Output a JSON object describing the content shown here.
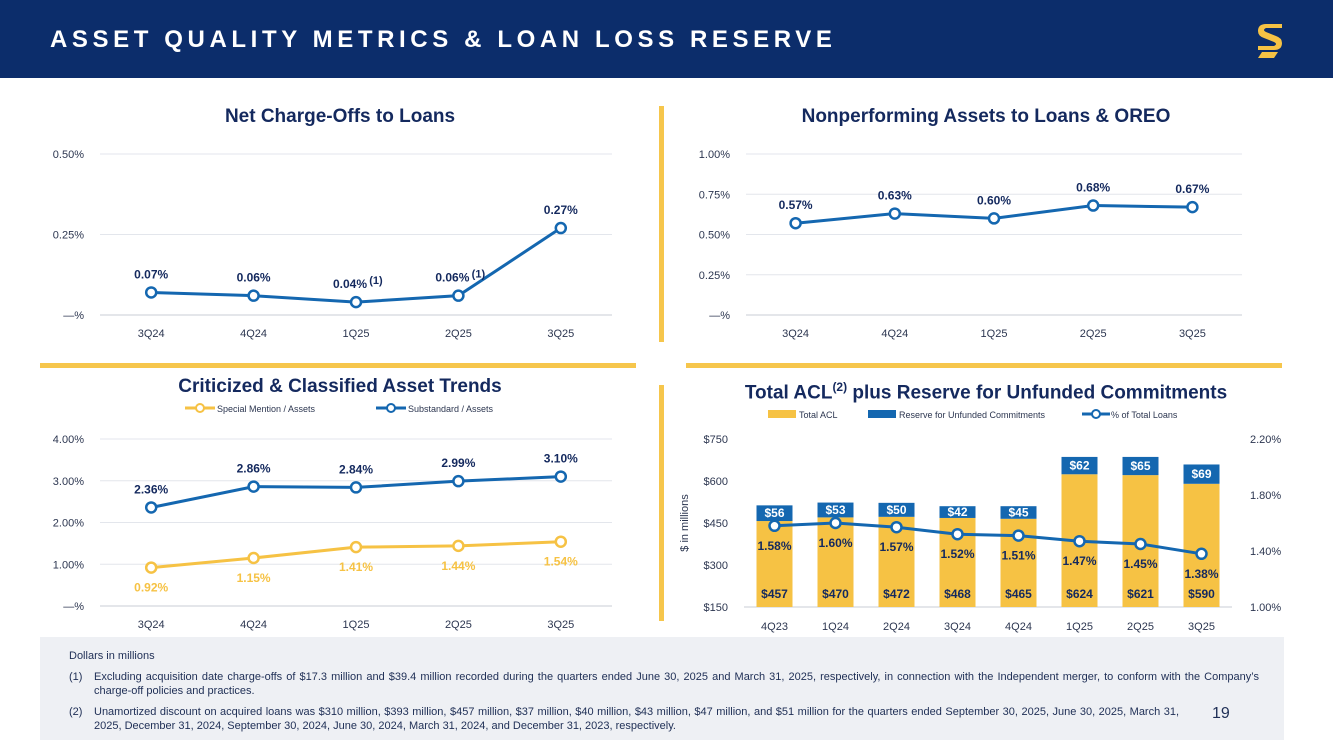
{
  "title": "ASSET QUALITY METRICS & LOAN LOSS RESERVE",
  "colors": {
    "navy": "#0c2d6b",
    "blue": "#1467b0",
    "gold": "#f6c244",
    "dark_label": "#14295e"
  },
  "chart_data": [
    {
      "id": "nco",
      "type": "line",
      "title": "Net Charge-Offs to Loans",
      "categories": [
        "3Q24",
        "4Q24",
        "1Q25",
        "2Q25",
        "3Q25"
      ],
      "y_ticks": [
        "0.50%",
        "0.25%",
        "—%"
      ],
      "ylim": [
        0,
        0.5
      ],
      "series": [
        {
          "values": [
            0.07,
            0.06,
            0.04,
            0.06,
            0.27
          ],
          "labels": [
            "0.07%",
            "0.06%",
            "0.04%",
            "0.06%",
            "0.27%"
          ],
          "footnotes": [
            "",
            "",
            "(1)",
            "(1)",
            ""
          ]
        }
      ],
      "grid": true
    },
    {
      "id": "npa",
      "type": "line",
      "title": "Nonperforming Assets to Loans & OREO",
      "categories": [
        "3Q24",
        "4Q24",
        "1Q25",
        "2Q25",
        "3Q25"
      ],
      "y_ticks": [
        "1.00%",
        "0.75%",
        "0.50%",
        "0.25%",
        "—%"
      ],
      "ylim": [
        0,
        1.0
      ],
      "series": [
        {
          "values": [
            0.57,
            0.63,
            0.6,
            0.68,
            0.67
          ],
          "labels": [
            "0.57%",
            "0.63%",
            "0.60%",
            "0.68%",
            "0.67%"
          ]
        }
      ],
      "grid": true
    },
    {
      "id": "crit",
      "type": "line",
      "title": "Criticized & Classified Asset Trends",
      "categories": [
        "3Q24",
        "4Q24",
        "1Q25",
        "2Q25",
        "3Q25"
      ],
      "y_ticks": [
        "4.00%",
        "3.00%",
        "2.00%",
        "1.00%",
        "—%"
      ],
      "ylim": [
        0,
        4.0
      ],
      "legend_position": "top-center",
      "series": [
        {
          "name": "Special Mention / Assets",
          "values": [
            0.92,
            1.15,
            1.41,
            1.44,
            1.54
          ],
          "labels": [
            "0.92%",
            "1.15%",
            "1.41%",
            "1.44%",
            "1.54%"
          ]
        },
        {
          "name": "Substandard / Assets",
          "values": [
            2.36,
            2.86,
            2.84,
            2.99,
            3.1
          ],
          "labels": [
            "2.36%",
            "2.86%",
            "2.84%",
            "2.99%",
            "3.10%"
          ]
        }
      ],
      "grid": true
    },
    {
      "id": "acl",
      "type": "bar",
      "title": "Total ACL",
      "title_sup": "(2)",
      "title_suffix": " plus Reserve for Unfunded Commitments",
      "ylabel": "$ in millions",
      "categories": [
        "4Q23",
        "1Q24",
        "2Q24",
        "3Q24",
        "4Q24",
        "1Q25",
        "2Q25",
        "3Q25"
      ],
      "y_ticks": [
        "$750",
        "$600",
        "$450",
        "$300",
        "$150"
      ],
      "ylim": [
        150,
        750
      ],
      "y2_ticks": [
        "2.20%",
        "1.80%",
        "1.40%",
        "1.00%"
      ],
      "y2lim": [
        1.0,
        2.2
      ],
      "legend_position": "top-center",
      "series": [
        {
          "name": "Total ACL",
          "values": [
            457,
            470,
            472,
            468,
            465,
            624,
            621,
            590
          ],
          "labels": [
            "$457",
            "$470",
            "$472",
            "$468",
            "$465",
            "$624",
            "$621",
            "$590"
          ]
        },
        {
          "name": "Reserve for Unfunded Commitments",
          "values": [
            56,
            53,
            50,
            42,
            45,
            62,
            65,
            69
          ],
          "labels": [
            "$56",
            "$53",
            "$50",
            "$42",
            "$45",
            "$62",
            "$65",
            "$69"
          ]
        },
        {
          "name": "% of Total Loans",
          "values": [
            1.58,
            1.6,
            1.57,
            1.52,
            1.51,
            1.47,
            1.45,
            1.38
          ],
          "labels": [
            "1.58%",
            "1.60%",
            "1.57%",
            "1.52%",
            "1.51%",
            "1.47%",
            "1.45%",
            "1.38%"
          ]
        }
      ],
      "grid": false
    }
  ],
  "footer": {
    "heading": "Dollars in millions",
    "notes": [
      {
        "num": "(1)",
        "text": "Excluding acquisition date charge-offs of $17.3 million and $39.4 million recorded during the quarters ended June 30, 2025 and March 31, 2025, respectively, in connection with the Independent merger, to conform with the Company’s charge-off policies and practices."
      },
      {
        "num": "(2)",
        "text": "Unamortized discount on acquired loans was $310 million, $393 million, $457 million, $37 million, $40 million, $43 million, $47 million, and $51 million for the quarters ended September 30, 2025, June 30, 2025, March 31, 2025, December 31, 2024, September 30, 2024, June 30, 2024, March 31, 2024, and December 31, 2023, respectively."
      }
    ]
  },
  "page_number": "19"
}
